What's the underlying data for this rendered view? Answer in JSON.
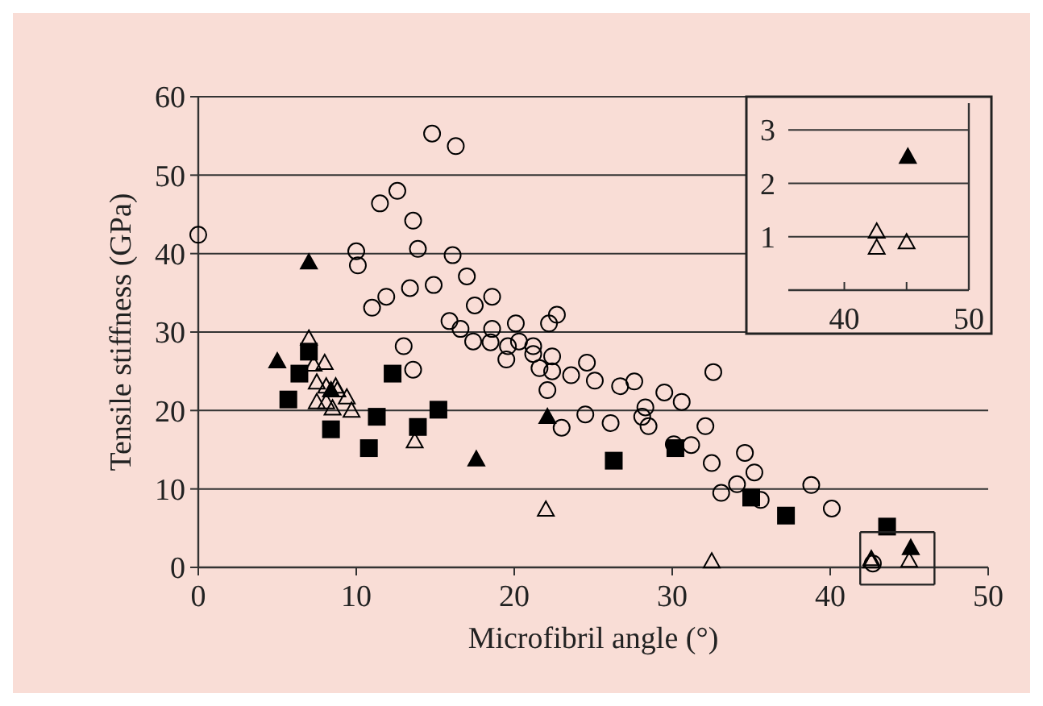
{
  "chart_data": [
    {
      "type": "scatter",
      "xlabel": "Microfibril angle (°)",
      "ylabel": "Tensile stiffness (GPa)",
      "xlim": [
        0,
        50
      ],
      "ylim": [
        0,
        60
      ],
      "xticks": [
        0,
        10,
        20,
        30,
        40,
        50
      ],
      "yticks": [
        0,
        10,
        20,
        30,
        40,
        50,
        60
      ],
      "grid": "y",
      "series": [
        {
          "marker": "circle",
          "color": "#000000",
          "x": [
            0,
            14.8,
            16.3,
            10.0,
            10.1,
            11.5,
            12.6,
            13.6,
            13.9,
            16.1,
            11.0,
            11.9,
            13.4,
            14.9,
            17.0,
            17.5,
            18.6,
            13.0,
            13.6,
            15.9,
            16.6,
            17.4,
            18.6,
            18.5,
            19.6,
            19.5,
            20.1,
            20.3,
            21.2,
            21.2,
            21.6,
            22.2,
            22.7,
            22.4,
            22.4,
            22.1,
            23.0,
            23.6,
            24.6,
            24.5,
            25.1,
            26.7,
            27.6,
            26.1,
            28.3,
            28.1,
            28.5,
            29.5,
            30.6,
            30.1,
            31.2,
            32.6,
            32.1,
            32.5,
            33.1,
            34.1,
            34.6,
            35.2,
            35.6,
            38.8,
            40.1,
            42.7
          ],
          "values": [
            42.4,
            55.3,
            53.7,
            40.3,
            38.5,
            46.4,
            48.0,
            44.2,
            40.6,
            39.8,
            33.1,
            34.5,
            35.6,
            36.0,
            37.1,
            33.4,
            34.5,
            28.2,
            25.2,
            31.4,
            30.4,
            28.8,
            30.4,
            28.7,
            28.2,
            26.5,
            31.1,
            28.8,
            28.2,
            27.2,
            25.4,
            31.1,
            32.2,
            26.9,
            25.0,
            22.6,
            17.8,
            24.5,
            26.1,
            19.5,
            23.8,
            23.1,
            23.7,
            18.4,
            20.4,
            19.2,
            18.0,
            22.3,
            21.1,
            15.7,
            15.6,
            24.9,
            18.0,
            13.3,
            9.5,
            10.6,
            14.6,
            12.1,
            8.6,
            10.5,
            7.5,
            0.5
          ]
        },
        {
          "marker": "square",
          "color": "#000000",
          "x": [
            7.0,
            6.4,
            5.7,
            8.4,
            12.3,
            11.3,
            10.8,
            13.9,
            15.2,
            26.3,
            30.2,
            35.0,
            37.2,
            43.6
          ],
          "values": [
            27.5,
            24.7,
            21.4,
            17.6,
            24.7,
            19.2,
            15.2,
            17.9,
            20.1,
            13.6,
            15.2,
            8.9,
            6.6,
            5.2
          ]
        },
        {
          "marker": "triangle",
          "color": "#000000",
          "x": [
            7.0,
            5.0,
            8.4,
            17.6,
            22.1,
            45.1
          ],
          "values": [
            38.9,
            26.3,
            22.6,
            13.8,
            19.2,
            2.5
          ]
        },
        {
          "marker": "triangle",
          "color": "#000000",
          "x": [
            7.0,
            7.3,
            8.0,
            7.5,
            8.1,
            8.7,
            8.8,
            9.4,
            7.5,
            8.1,
            8.5,
            9.7,
            13.7,
            22.0,
            32.5,
            42.6,
            42.6,
            45.0
          ],
          "values": [
            29.2,
            25.9,
            26.1,
            23.6,
            23.1,
            23.1,
            22.6,
            21.7,
            21.1,
            21.1,
            20.3,
            20.0,
            16.1,
            7.4,
            0.8,
            1.1,
            0.8,
            0.9
          ]
        }
      ]
    },
    {
      "type": "scatter",
      "xlim": [
        35.5,
        50
      ],
      "ylim": [
        0,
        3.5
      ],
      "xticks": [
        40,
        {
          "value": 45,
          "label": null
        },
        50
      ],
      "yticks": [
        1,
        2,
        3
      ],
      "grid": "y",
      "series": [
        {
          "marker": "triangle",
          "color": "#000000",
          "x": [
            45.1
          ],
          "values": [
            2.5
          ]
        },
        {
          "marker": "triangle",
          "color": "#000000",
          "x": [
            42.6,
            42.6,
            45.0
          ],
          "values": [
            1.1,
            0.8,
            0.9
          ]
        }
      ]
    }
  ]
}
